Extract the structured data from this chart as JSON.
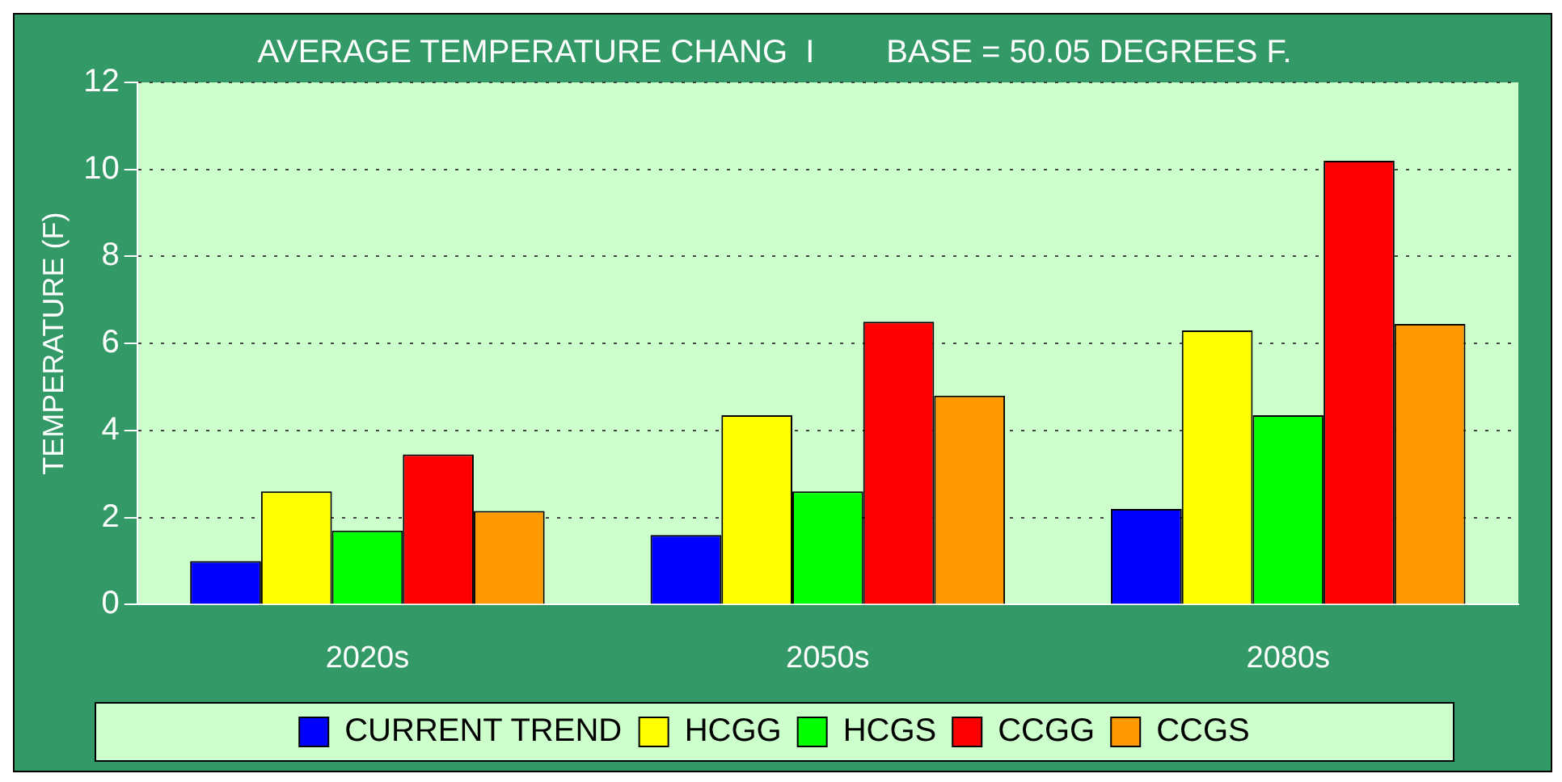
{
  "chart_data": {
    "type": "bar",
    "title": "AVERAGE TEMPERATURE CHANG  I        BASE = 50.05 DEGREES F.",
    "ylabel": "TEMPERATURE (F)",
    "categories": [
      "2020s",
      "2050s",
      "2080s"
    ],
    "series": [
      {
        "name": "CURRENT TREND",
        "color": "#0000ff",
        "values": [
          1.0,
          1.6,
          2.2
        ]
      },
      {
        "name": "HCGG",
        "color": "#ffff00",
        "values": [
          2.6,
          4.35,
          6.3
        ]
      },
      {
        "name": "HCGS",
        "color": "#00ff00",
        "values": [
          1.7,
          2.6,
          4.35
        ]
      },
      {
        "name": "CCGG",
        "color": "#ff0000",
        "values": [
          3.45,
          6.5,
          10.2
        ]
      },
      {
        "name": "CCGS",
        "color": "#ff9900",
        "values": [
          2.15,
          4.8,
          6.45
        ]
      }
    ],
    "ylim": [
      0,
      12
    ],
    "yticks": [
      0,
      2,
      4,
      6,
      8,
      10,
      12
    ],
    "grid": "y",
    "legend": "bottom"
  }
}
